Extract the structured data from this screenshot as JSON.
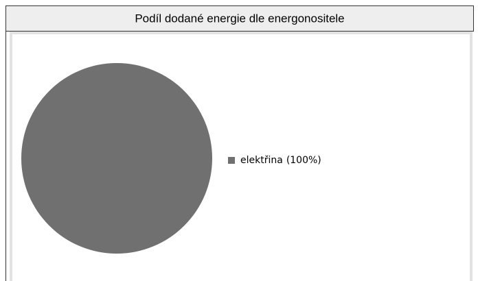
{
  "chart_data": {
    "type": "pie",
    "title": "Podíl dodané energie dle energonositele",
    "categories": [
      "elektřina"
    ],
    "values": [
      100
    ],
    "value_labels": [
      "(100%)"
    ],
    "colors": [
      "#707070"
    ],
    "legend": "right"
  }
}
